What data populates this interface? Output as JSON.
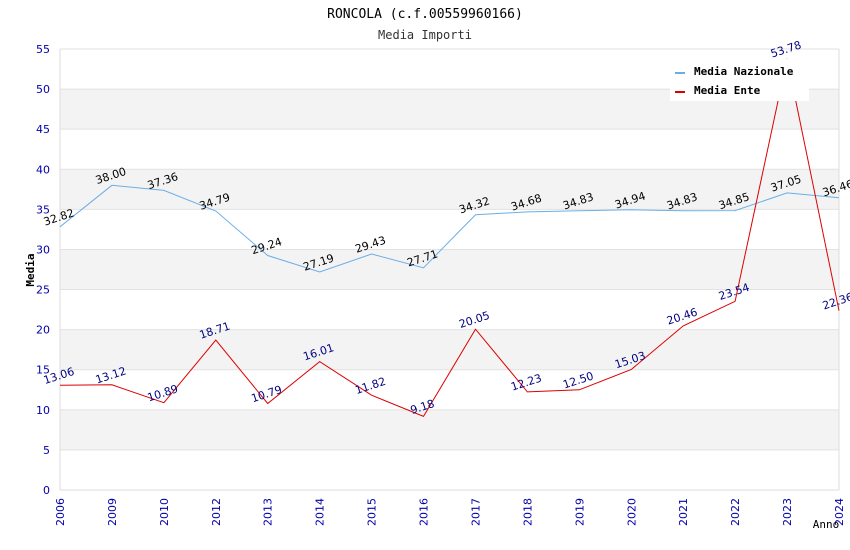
{
  "chart_data": {
    "type": "line",
    "title": "RONCOLA (c.f.00559960166)",
    "subtitle": "Media Importi",
    "xlabel": "Anno",
    "ylabel": "Media",
    "ylim": [
      0,
      55
    ],
    "yticks": [
      "0",
      "5",
      "10",
      "15",
      "20",
      "25",
      "30",
      "35",
      "40",
      "45",
      "50",
      "55"
    ],
    "categories": [
      "2006",
      "2009",
      "2010",
      "2012",
      "2013",
      "2014",
      "2015",
      "2016",
      "2017",
      "2018",
      "2019",
      "2020",
      "2021",
      "2022",
      "2023",
      "2024"
    ],
    "grid": true,
    "legend_position": "top-right",
    "series": [
      {
        "name": "Media Nazionale",
        "color": "#6aaee8",
        "label_color": "#000000",
        "values": [
          32.82,
          38.0,
          37.36,
          34.79,
          29.24,
          27.19,
          29.43,
          27.71,
          34.32,
          34.68,
          34.83,
          34.94,
          34.83,
          34.85,
          37.05,
          36.46
        ],
        "labels": [
          "32.82",
          "38.00",
          "37.36",
          "34.79",
          "29.24",
          "27.19",
          "29.43",
          "27.71",
          "34.32",
          "34.68",
          "34.83",
          "34.94",
          "34.83",
          "34.85",
          "37.05",
          "36.46"
        ]
      },
      {
        "name": "Media Ente",
        "color": "#dd0000",
        "label_color": "#000080",
        "values": [
          13.06,
          13.12,
          10.89,
          18.71,
          10.79,
          16.01,
          11.82,
          9.18,
          20.05,
          12.23,
          12.5,
          15.03,
          20.46,
          23.54,
          53.78,
          22.36
        ],
        "labels": [
          "13.06",
          "13.12",
          "10.89",
          "18.71",
          "10.79",
          "16.01",
          "11.82",
          "9.18",
          "20.05",
          "12.23",
          "12.50",
          "15.03",
          "20.46",
          "23.54",
          "53.78",
          "22.36"
        ]
      }
    ]
  }
}
